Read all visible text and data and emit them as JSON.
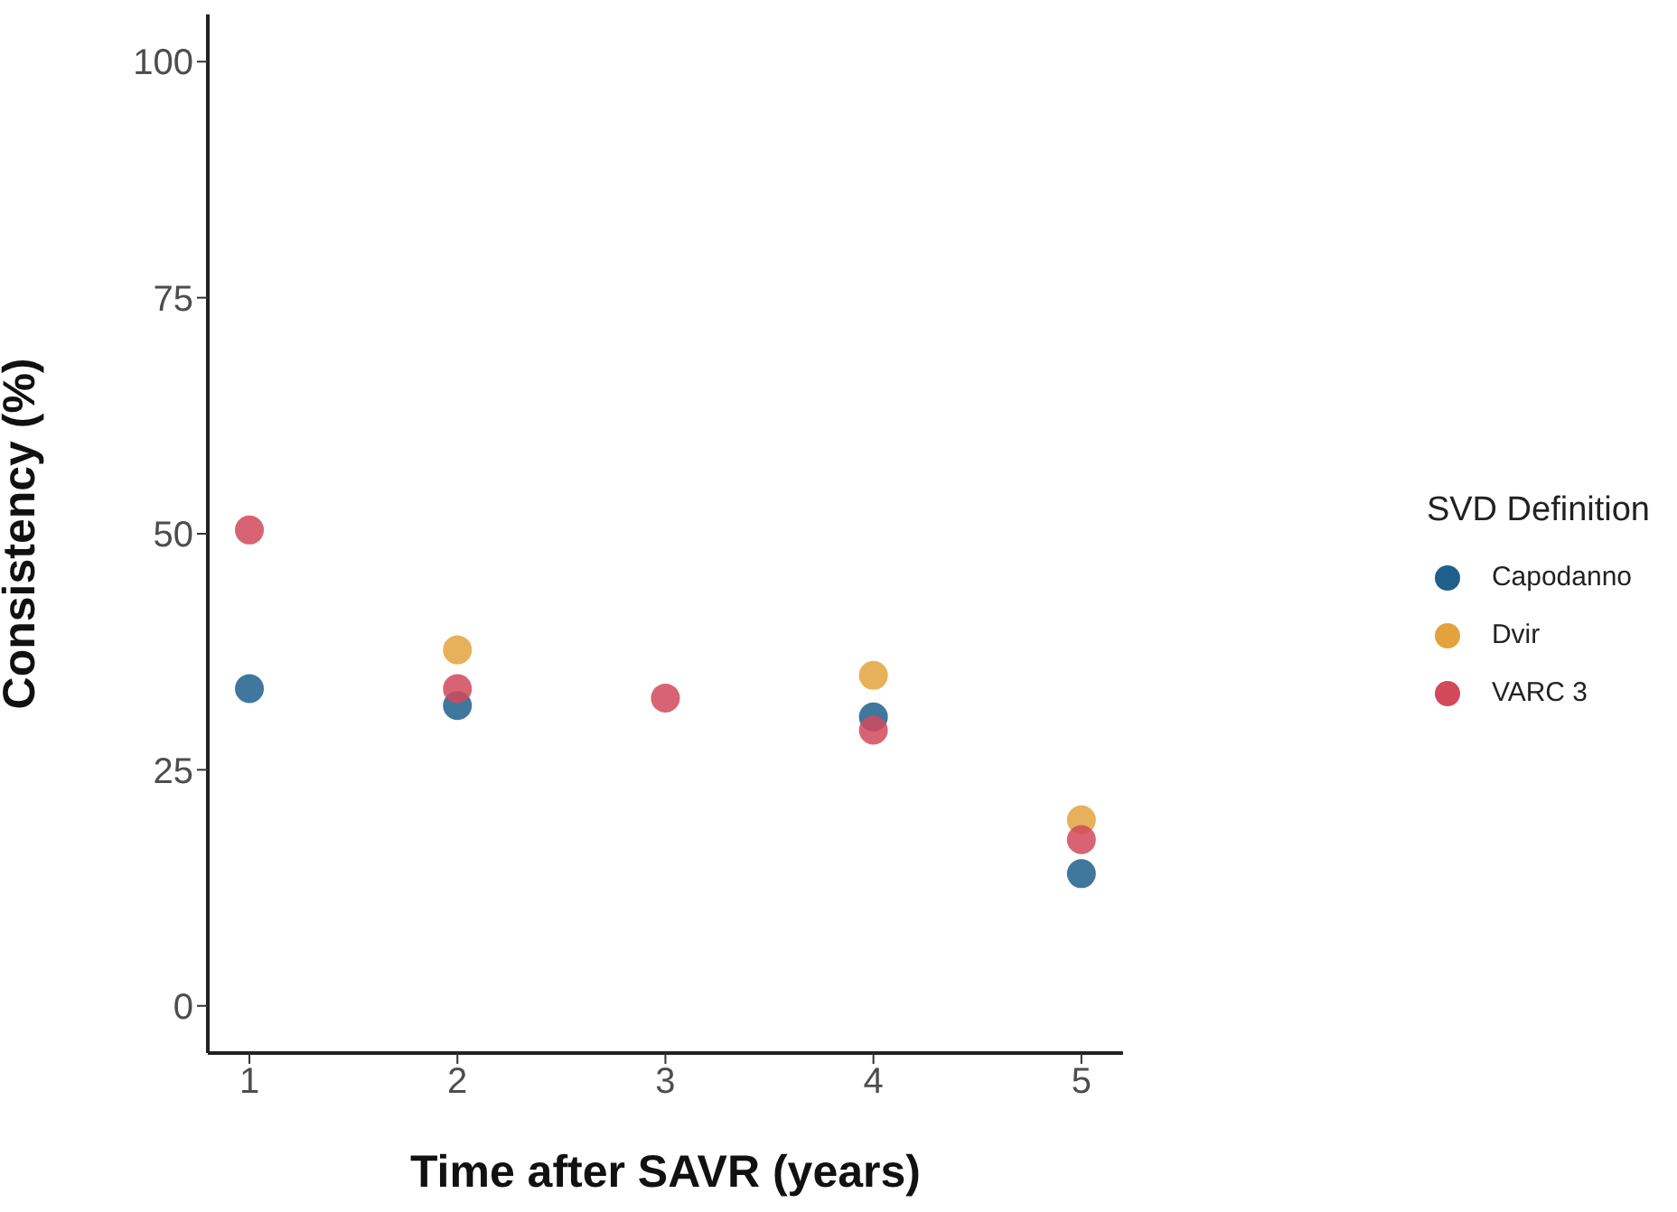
{
  "chart_data": {
    "type": "scatter",
    "xlabel": "Time after SAVR (years)",
    "ylabel": "Consistency (%)",
    "legend_title": "SVD Definition",
    "x": [
      1,
      2,
      3,
      4,
      5
    ],
    "series": [
      {
        "name": "Capodanno",
        "color": "#1f5f8b",
        "values": [
          33.6,
          31.8,
          null,
          30.6,
          14.0
        ]
      },
      {
        "name": "Dvir",
        "color": "#e3a23d",
        "values": [
          null,
          37.7,
          null,
          35.0,
          19.7
        ]
      },
      {
        "name": "VARC 3",
        "color": "#d1495b",
        "values": [
          50.4,
          33.6,
          32.6,
          29.2,
          17.6
        ]
      }
    ],
    "xlim": [
      0.8,
      5.2
    ],
    "xticks": [
      1,
      2,
      3,
      4,
      5
    ],
    "ylim": [
      -5,
      105
    ],
    "yticks": [
      0,
      25,
      50,
      75,
      100
    ],
    "grid": false,
    "legend": "right",
    "marker": "circle"
  }
}
